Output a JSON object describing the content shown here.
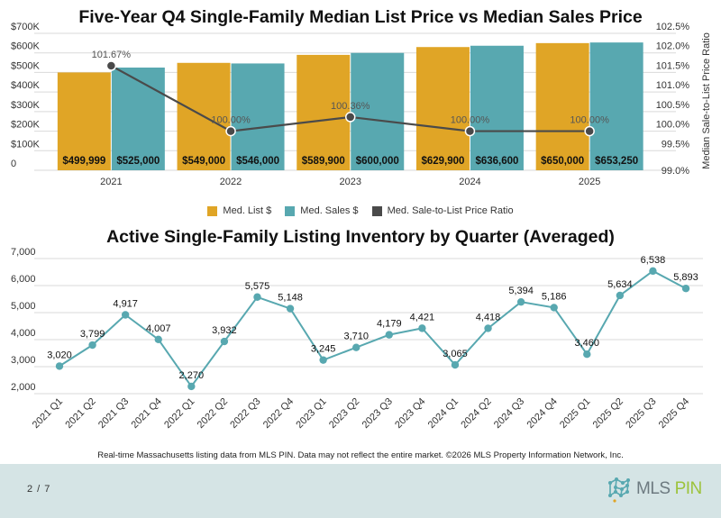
{
  "chart_data": [
    {
      "type": "bar",
      "title": "Five-Year Q4 Single-Family Median List Price vs Median Sales Price",
      "categories": [
        "2021",
        "2022",
        "2023",
        "2024",
        "2025"
      ],
      "series": [
        {
          "name": "Med. List $",
          "axis": "left",
          "type": "bar",
          "color": "#e0a526",
          "values": [
            499999,
            549000,
            589900,
            629900,
            650000
          ],
          "labels": [
            "$499,999",
            "$549,000",
            "$589,900",
            "$629,900",
            "$650,000"
          ]
        },
        {
          "name": "Med. Sales $",
          "axis": "left",
          "type": "bar",
          "color": "#58a8b0",
          "values": [
            525000,
            546000,
            600000,
            636600,
            653250
          ],
          "labels": [
            "$525,000",
            "$546,000",
            "$600,000",
            "$636,600",
            "$653,250"
          ]
        },
        {
          "name": "Med. Sale-to-List Price Ratio",
          "axis": "right",
          "type": "line",
          "color": "#4a4a4a",
          "values": [
            101.67,
            100.0,
            100.36,
            100.0,
            100.0
          ],
          "labels": [
            "101.67%",
            "100.00%",
            "100.36%",
            "100.00%",
            "100.00%"
          ]
        }
      ],
      "xlabel": "",
      "ylabel_left": "",
      "ylabel_right": "Median Sale-to-List Price Ratio",
      "ylim_left": [
        0,
        700000
      ],
      "ylim_right": [
        99.0,
        102.5
      ],
      "yticks_left": [
        "0",
        "$100K",
        "$200K",
        "$300K",
        "$400K",
        "$500K",
        "$600K",
        "$700K"
      ],
      "yticks_right": [
        "99.0%",
        "99.5%",
        "100.0%",
        "100.5%",
        "101.0%",
        "101.5%",
        "102.0%",
        "102.5%"
      ],
      "grid": true,
      "legend_position": "bottom"
    },
    {
      "type": "line",
      "title": "Active Single-Family Listing Inventory by Quarter (Averaged)",
      "x": [
        "2021 Q1",
        "2021 Q2",
        "2021 Q3",
        "2021 Q4",
        "2022 Q1",
        "2022 Q2",
        "2022 Q3",
        "2022 Q4",
        "2023 Q1",
        "2023 Q2",
        "2023 Q3",
        "2023 Q4",
        "2024 Q1",
        "2024 Q2",
        "2024 Q3",
        "2024 Q4",
        "2025 Q1",
        "2025 Q2",
        "2025 Q3",
        "2025 Q4"
      ],
      "series": [
        {
          "name": "Active Listings",
          "color": "#58a8b0",
          "values": [
            3020,
            3799,
            4917,
            4007,
            2270,
            3932,
            5575,
            5148,
            3245,
            3710,
            4179,
            4421,
            3065,
            4418,
            5394,
            5186,
            3460,
            5634,
            6538,
            5893
          ],
          "labels": [
            "3,020",
            "3,799",
            "4,917",
            "4,007",
            "2,270",
            "3,932",
            "5,575",
            "5,148",
            "3,245",
            "3,710",
            "4,179",
            "4,421",
            "3,065",
            "4,418",
            "5,394",
            "5,186",
            "3,460",
            "5,634",
            "6,538",
            "5,893"
          ]
        }
      ],
      "xlabel": "",
      "ylabel": "",
      "ylim": [
        1500,
        7000
      ],
      "yticks": [
        "2,000",
        "3,000",
        "4,000",
        "5,000",
        "6,000",
        "7,000"
      ],
      "ytick_values": [
        2000,
        3000,
        4000,
        5000,
        6000,
        7000
      ],
      "grid": true
    }
  ],
  "legend": {
    "items": [
      {
        "label": "Med. List $",
        "color": "#e0a526"
      },
      {
        "label": "Med. Sales $",
        "color": "#58a8b0"
      },
      {
        "label": "Med. Sale-to-List Price Ratio",
        "color": "#4a4a4a"
      }
    ]
  },
  "caption": "Real-time Massachusetts listing data from MLS PIN. Data may not reflect the entire market. ©2026 MLS Property Information Network, Inc.",
  "footer": {
    "page": "2 / 7",
    "logo_mls": "MLS",
    "logo_pin": "PIN"
  }
}
